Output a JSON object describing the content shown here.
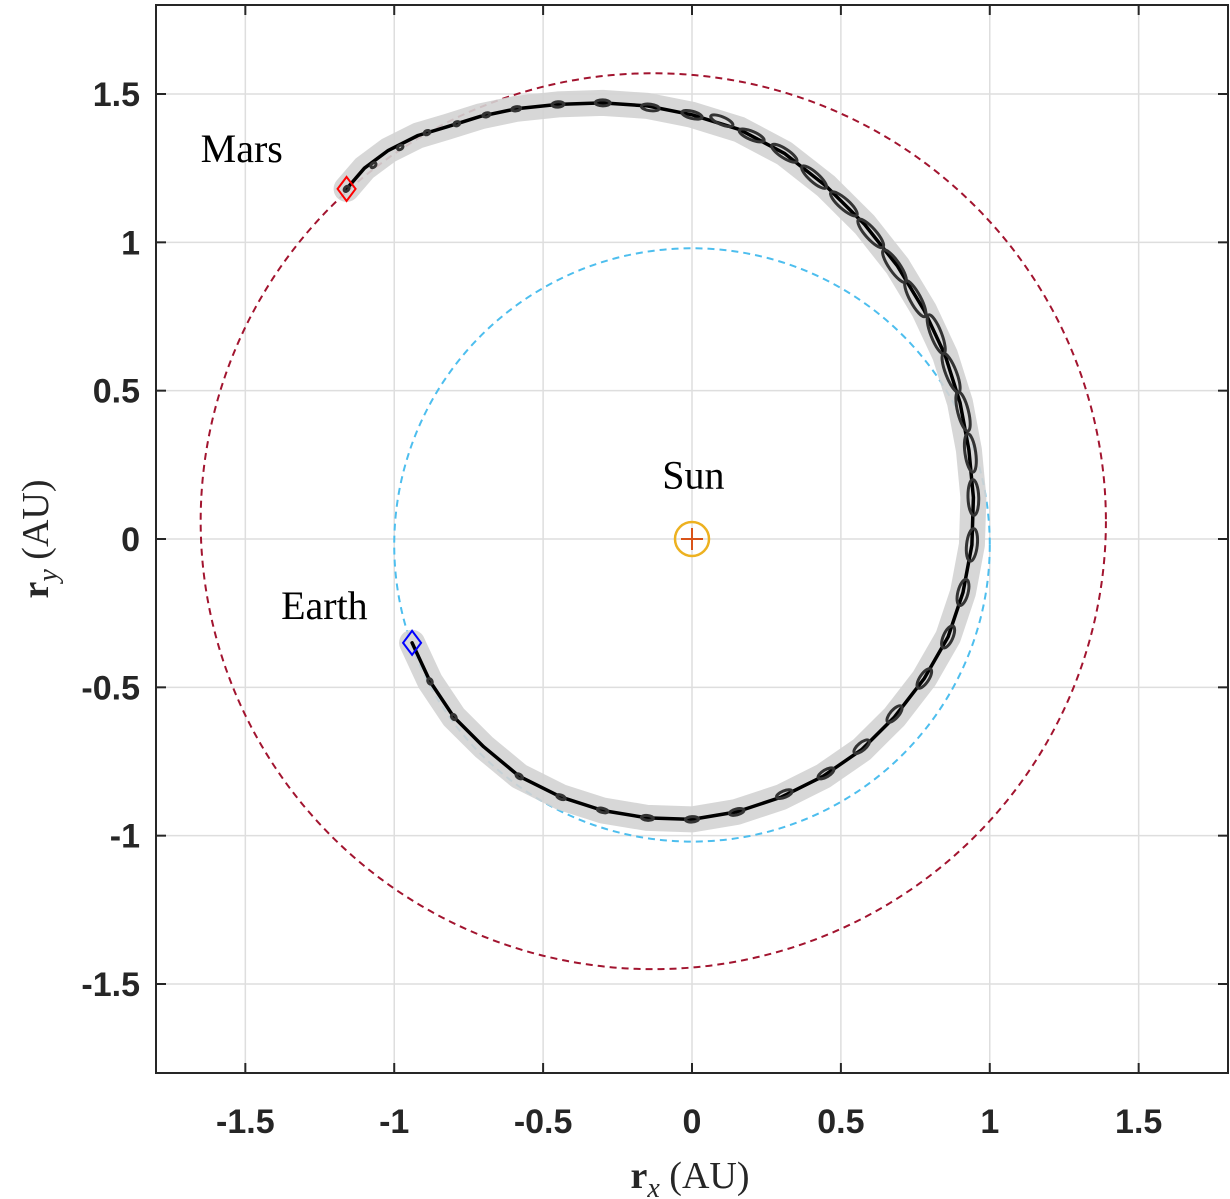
{
  "chart_data": {
    "type": "line",
    "title": "",
    "xlabel": "r_x (AU)",
    "ylabel": "r_y (AU)",
    "xlabel_parts": {
      "symbol": "r",
      "sub": "x",
      "unit": "(AU)"
    },
    "ylabel_parts": {
      "symbol": "r",
      "sub": "y",
      "unit": "(AU)"
    },
    "xlim": [
      -1.8,
      1.8
    ],
    "ylim": [
      -1.8,
      1.8
    ],
    "xticks": [
      -1.5,
      -1,
      -0.5,
      0,
      0.5,
      1,
      1.5
    ],
    "yticks": [
      -1.5,
      -1,
      -0.5,
      0,
      0.5,
      1,
      1.5
    ],
    "xtick_labels": [
      "-1.5",
      "-1",
      "-0.5",
      "0",
      "0.5",
      "1",
      "1.5"
    ],
    "ytick_labels": [
      "-1.5",
      "-1",
      "-0.5",
      "0",
      "0.5",
      "1",
      "1.5"
    ],
    "grid": true,
    "orbits": [
      {
        "name": "Earth orbit",
        "cx": 0.0,
        "cy": -0.02,
        "rx": 1.0,
        "ry": 1.0,
        "color": "#4DBEEE",
        "style": "dashed"
      },
      {
        "name": "Mars orbit",
        "cx": -0.13,
        "cy": 0.06,
        "rx": 1.52,
        "ry": 1.51,
        "color": "#A2142F",
        "style": "dashed"
      }
    ],
    "trajectory": {
      "color": "#000000",
      "points": [
        [
          -0.94,
          -0.35
        ],
        [
          -0.88,
          -0.48
        ],
        [
          -0.8,
          -0.6
        ],
        [
          -0.7,
          -0.7
        ],
        [
          -0.58,
          -0.8
        ],
        [
          -0.44,
          -0.87
        ],
        [
          -0.3,
          -0.915
        ],
        [
          -0.15,
          -0.94
        ],
        [
          0.0,
          -0.945
        ],
        [
          0.15,
          -0.92
        ],
        [
          0.3,
          -0.87
        ],
        [
          0.44,
          -0.8
        ],
        [
          0.57,
          -0.71
        ],
        [
          0.68,
          -0.6
        ],
        [
          0.78,
          -0.47
        ],
        [
          0.86,
          -0.33
        ],
        [
          0.91,
          -0.18
        ],
        [
          0.94,
          -0.02
        ],
        [
          0.945,
          0.14
        ],
        [
          0.93,
          0.3
        ],
        [
          0.9,
          0.46
        ],
        [
          0.85,
          0.62
        ],
        [
          0.78,
          0.77
        ],
        [
          0.69,
          0.92
        ],
        [
          0.58,
          1.06
        ],
        [
          0.45,
          1.19
        ],
        [
          0.31,
          1.3
        ],
        [
          0.16,
          1.38
        ],
        [
          0.0,
          1.43
        ],
        [
          -0.15,
          1.46
        ],
        [
          -0.3,
          1.47
        ],
        [
          -0.45,
          1.465
        ],
        [
          -0.59,
          1.45
        ],
        [
          -0.71,
          1.425
        ],
        [
          -0.82,
          1.39
        ],
        [
          -0.92,
          1.36
        ],
        [
          -1.02,
          1.31
        ],
        [
          -1.1,
          1.25
        ],
        [
          -1.16,
          1.18
        ]
      ],
      "uncertainty_ellipses": [
        [
          -0.88,
          -0.48,
          0.006,
          0.004,
          0
        ],
        [
          -0.8,
          -0.6,
          0.008,
          0.005,
          0
        ],
        [
          -0.58,
          -0.8,
          0.012,
          0.006,
          0
        ],
        [
          -0.44,
          -0.87,
          0.015,
          0.006,
          0
        ],
        [
          -0.3,
          -0.915,
          0.018,
          0.007,
          0
        ],
        [
          -0.15,
          -0.94,
          0.02,
          0.008,
          0
        ],
        [
          0.0,
          -0.945,
          0.022,
          0.009,
          0
        ],
        [
          0.15,
          -0.92,
          0.025,
          0.01,
          0
        ],
        [
          0.31,
          -0.86,
          0.028,
          0.011,
          0
        ],
        [
          0.45,
          -0.79,
          0.03,
          0.012,
          0
        ],
        [
          0.57,
          -0.7,
          0.032,
          0.013,
          0
        ],
        [
          0.68,
          -0.59,
          0.035,
          0.014,
          0
        ],
        [
          0.78,
          -0.47,
          0.038,
          0.015,
          0
        ],
        [
          0.86,
          -0.33,
          0.04,
          0.016,
          0
        ],
        [
          0.91,
          -0.18,
          0.045,
          0.017,
          0
        ],
        [
          0.94,
          -0.02,
          0.055,
          0.018,
          0
        ],
        [
          0.945,
          0.14,
          0.06,
          0.018,
          0
        ],
        [
          0.935,
          0.29,
          0.065,
          0.018,
          0
        ],
        [
          0.91,
          0.43,
          0.068,
          0.018,
          0
        ],
        [
          0.87,
          0.56,
          0.07,
          0.018,
          0
        ],
        [
          0.82,
          0.69,
          0.07,
          0.018,
          0
        ],
        [
          0.75,
          0.81,
          0.068,
          0.018,
          0
        ],
        [
          0.68,
          0.92,
          0.065,
          0.018,
          0
        ],
        [
          0.6,
          1.03,
          0.062,
          0.018,
          0
        ],
        [
          0.51,
          1.13,
          0.058,
          0.017,
          0
        ],
        [
          0.41,
          1.22,
          0.054,
          0.016,
          0
        ],
        [
          0.31,
          1.3,
          0.05,
          0.015,
          0
        ],
        [
          0.2,
          1.36,
          0.045,
          0.014,
          0
        ],
        [
          0.1,
          1.41,
          0.04,
          0.013,
          0
        ],
        [
          0.0,
          1.43,
          0.035,
          0.012,
          0
        ],
        [
          -0.14,
          1.455,
          0.03,
          0.011,
          0
        ],
        [
          -0.3,
          1.47,
          0.025,
          0.01,
          0
        ],
        [
          -0.45,
          1.465,
          0.02,
          0.009,
          0
        ],
        [
          -0.59,
          1.45,
          0.015,
          0.007,
          0
        ],
        [
          -0.69,
          1.43,
          0.012,
          0.006,
          0
        ],
        [
          -0.79,
          1.4,
          0.01,
          0.005,
          0
        ],
        [
          -0.89,
          1.37,
          0.008,
          0.004,
          0
        ],
        [
          -0.98,
          1.32,
          0.006,
          0.004,
          0
        ],
        [
          -1.07,
          1.26,
          0.005,
          0.003,
          0
        ],
        [
          -1.16,
          1.18,
          0.004,
          0.003,
          0
        ]
      ]
    },
    "markers": [
      {
        "name": "Earth",
        "x": -0.94,
        "y": -0.35,
        "shape": "diamond",
        "color": "#0000FF",
        "label": "Earth",
        "label_x": -1.38,
        "label_y": -0.27
      },
      {
        "name": "Mars",
        "x": -1.16,
        "y": 1.18,
        "shape": "diamond",
        "color": "#FF0000",
        "label": "Mars",
        "label_x": -1.65,
        "label_y": 1.27
      },
      {
        "name": "Sun",
        "x": 0.0,
        "y": 0.0,
        "shape": "circle-plus",
        "color": "#EDB120",
        "cross_color": "#D95319",
        "label": "Sun",
        "label_x": -0.1,
        "label_y": 0.17
      }
    ]
  }
}
